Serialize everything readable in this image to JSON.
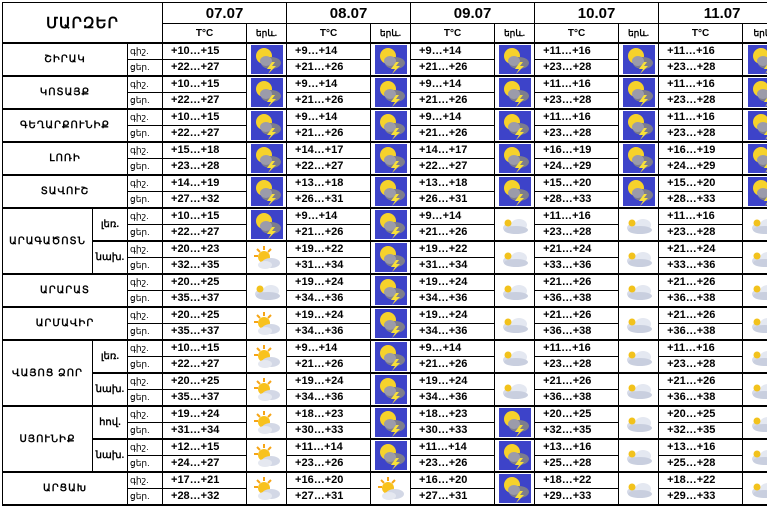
{
  "header": {
    "region_title": "ՄԱՐԶԵՐ",
    "dates": [
      "07.07",
      "08.07",
      "09.07",
      "10.07",
      "11.07"
    ],
    "temp_label": "T°C",
    "icon_label": "երև."
  },
  "time_labels": {
    "night": "գիշ.",
    "day": "ցեր."
  },
  "regions": [
    {
      "name": "ՇԻՐԱԿ",
      "rows": [
        {
          "sub": "",
          "days": [
            {
              "night": "+10…+15",
              "day": "+22…+27",
              "icon": "storm"
            },
            {
              "night": "+9…+14",
              "day": "+21…+26",
              "icon": "storm"
            },
            {
              "night": "+9…+14",
              "day": "+21…+26",
              "icon": "storm"
            },
            {
              "night": "+11…+16",
              "day": "+23…+28",
              "icon": "storm"
            },
            {
              "night": "+11…+16",
              "day": "+23…+28",
              "icon": "storm"
            }
          ]
        }
      ]
    },
    {
      "name": "ԿՈՏԱՅՔ",
      "rows": [
        {
          "sub": "",
          "days": [
            {
              "night": "+10…+15",
              "day": "+22…+27",
              "icon": "storm"
            },
            {
              "night": "+9…+14",
              "day": "+21…+26",
              "icon": "storm"
            },
            {
              "night": "+9…+14",
              "day": "+21…+26",
              "icon": "storm"
            },
            {
              "night": "+11…+16",
              "day": "+23…+28",
              "icon": "storm"
            },
            {
              "night": "+11…+16",
              "day": "+23…+28",
              "icon": "storm"
            }
          ]
        }
      ]
    },
    {
      "name": "ԳԵՂԱՐՔՈՒՆԻՔ",
      "rows": [
        {
          "sub": "",
          "days": [
            {
              "night": "+10…+15",
              "day": "+22…+27",
              "icon": "storm"
            },
            {
              "night": "+9…+14",
              "day": "+21…+26",
              "icon": "storm"
            },
            {
              "night": "+9…+14",
              "day": "+21…+26",
              "icon": "storm"
            },
            {
              "night": "+11…+16",
              "day": "+23…+28",
              "icon": "storm"
            },
            {
              "night": "+11…+16",
              "day": "+23…+28",
              "icon": "storm"
            }
          ]
        }
      ]
    },
    {
      "name": "ԼՈՌԻ",
      "rows": [
        {
          "sub": "",
          "days": [
            {
              "night": "+15…+18",
              "day": "+23…+28",
              "icon": "storm"
            },
            {
              "night": "+14…+17",
              "day": "+22…+27",
              "icon": "storm"
            },
            {
              "night": "+14…+17",
              "day": "+22…+27",
              "icon": "storm"
            },
            {
              "night": "+16…+19",
              "day": "+24…+29",
              "icon": "storm"
            },
            {
              "night": "+16…+19",
              "day": "+24…+29",
              "icon": "storm"
            }
          ]
        }
      ]
    },
    {
      "name": "ՏԱՎՈՒՇ",
      "rows": [
        {
          "sub": "",
          "days": [
            {
              "night": "+14…+19",
              "day": "+27…+32",
              "icon": "storm"
            },
            {
              "night": "+13…+18",
              "day": "+26…+31",
              "icon": "storm"
            },
            {
              "night": "+13…+18",
              "day": "+26…+31",
              "icon": "storm"
            },
            {
              "night": "+15…+20",
              "day": "+28…+33",
              "icon": "storm"
            },
            {
              "night": "+15…+20",
              "day": "+28…+33",
              "icon": "storm"
            }
          ]
        }
      ]
    },
    {
      "name": "ԱՐԱԳԱԾՈՏՆ",
      "rows": [
        {
          "sub": "լեռ.",
          "days": [
            {
              "night": "+10…+15",
              "day": "+22…+27",
              "icon": "storm"
            },
            {
              "night": "+9…+14",
              "day": "+21…+26",
              "icon": "storm"
            },
            {
              "night": "+9…+14",
              "day": "+21…+26",
              "icon": "cloud"
            },
            {
              "night": "+11…+16",
              "day": "+23…+28",
              "icon": "cloud"
            },
            {
              "night": "+11…+16",
              "day": "+23…+28",
              "icon": "cloud"
            }
          ]
        },
        {
          "sub": "նախ.",
          "days": [
            {
              "night": "+20…+23",
              "day": "+32…+35",
              "icon": "sun"
            },
            {
              "night": "+19…+22",
              "day": "+31…+34",
              "icon": "storm"
            },
            {
              "night": "+19…+22",
              "day": "+31…+34",
              "icon": "cloud"
            },
            {
              "night": "+21…+24",
              "day": "+33…+36",
              "icon": "cloud"
            },
            {
              "night": "+21…+24",
              "day": "+33…+36",
              "icon": "cloud"
            }
          ]
        }
      ]
    },
    {
      "name": "ԱՐԱՐԱՏ",
      "rows": [
        {
          "sub": "",
          "days": [
            {
              "night": "+20…+25",
              "day": "+35…+37",
              "icon": "cloud"
            },
            {
              "night": "+19…+24",
              "day": "+34…+36",
              "icon": "storm"
            },
            {
              "night": "+19…+24",
              "day": "+34…+36",
              "icon": "cloud"
            },
            {
              "night": "+21…+26",
              "day": "+36…+38",
              "icon": "cloud"
            },
            {
              "night": "+21…+26",
              "day": "+36…+38",
              "icon": "cloud"
            }
          ]
        }
      ]
    },
    {
      "name": "ԱՐՄԱՎԻՐ",
      "rows": [
        {
          "sub": "",
          "days": [
            {
              "night": "+20…+25",
              "day": "+35…+37",
              "icon": "sun"
            },
            {
              "night": "+19…+24",
              "day": "+34…+36",
              "icon": "storm"
            },
            {
              "night": "+19…+24",
              "day": "+34…+36",
              "icon": "cloud"
            },
            {
              "night": "+21…+26",
              "day": "+36…+38",
              "icon": "cloud"
            },
            {
              "night": "+21…+26",
              "day": "+36…+38",
              "icon": "cloud"
            }
          ]
        }
      ]
    },
    {
      "name": "ՎԱՅՈՑ ՁՈՐ",
      "rows": [
        {
          "sub": "լեռ.",
          "days": [
            {
              "night": "+10…+15",
              "day": "+22…+27",
              "icon": "sun"
            },
            {
              "night": "+9…+14",
              "day": "+21…+26",
              "icon": "storm"
            },
            {
              "night": "+9…+14",
              "day": "+21…+26",
              "icon": "cloud"
            },
            {
              "night": "+11…+16",
              "day": "+23…+28",
              "icon": "cloud"
            },
            {
              "night": "+11…+16",
              "day": "+23…+28",
              "icon": "cloud"
            }
          ]
        },
        {
          "sub": "նախ.",
          "days": [
            {
              "night": "+20…+25",
              "day": "+35…+37",
              "icon": "sun"
            },
            {
              "night": "+19…+24",
              "day": "+34…+36",
              "icon": "storm"
            },
            {
              "night": "+19…+24",
              "day": "+34…+36",
              "icon": "cloud"
            },
            {
              "night": "+21…+26",
              "day": "+36…+38",
              "icon": "cloud"
            },
            {
              "night": "+21…+26",
              "day": "+36…+38",
              "icon": "cloud"
            }
          ]
        }
      ]
    },
    {
      "name": "ՍՅՈՒՆԻՔ",
      "rows": [
        {
          "sub": "հով.",
          "days": [
            {
              "night": "+19…+24",
              "day": "+31…+34",
              "icon": "sun"
            },
            {
              "night": "+18…+23",
              "day": "+30…+33",
              "icon": "storm"
            },
            {
              "night": "+18…+23",
              "day": "+30…+33",
              "icon": "storm"
            },
            {
              "night": "+20…+25",
              "day": "+32…+35",
              "icon": "cloud"
            },
            {
              "night": "+20…+25",
              "day": "+32…+35",
              "icon": "cloud"
            }
          ]
        },
        {
          "sub": "նախ.",
          "days": [
            {
              "night": "+12…+15",
              "day": "+24…+27",
              "icon": "sun"
            },
            {
              "night": "+11…+14",
              "day": "+23…+26",
              "icon": "storm"
            },
            {
              "night": "+11…+14",
              "day": "+23…+26",
              "icon": "storm"
            },
            {
              "night": "+13…+16",
              "day": "+25…+28",
              "icon": "cloud"
            },
            {
              "night": "+13…+16",
              "day": "+25…+28",
              "icon": "cloud"
            }
          ]
        }
      ]
    },
    {
      "name": "ԱՐՑԱԽ",
      "rows": [
        {
          "sub": "",
          "days": [
            {
              "night": "+17…+21",
              "day": "+28…+32",
              "icon": "sun"
            },
            {
              "night": "+16…+20",
              "day": "+27…+31",
              "icon": "sun"
            },
            {
              "night": "+16…+20",
              "day": "+27…+31",
              "icon": "storm"
            },
            {
              "night": "+18…+22",
              "day": "+29…+33",
              "icon": "cloud"
            },
            {
              "night": "+18…+22",
              "day": "+29…+33",
              "icon": "cloud"
            }
          ]
        }
      ]
    }
  ]
}
